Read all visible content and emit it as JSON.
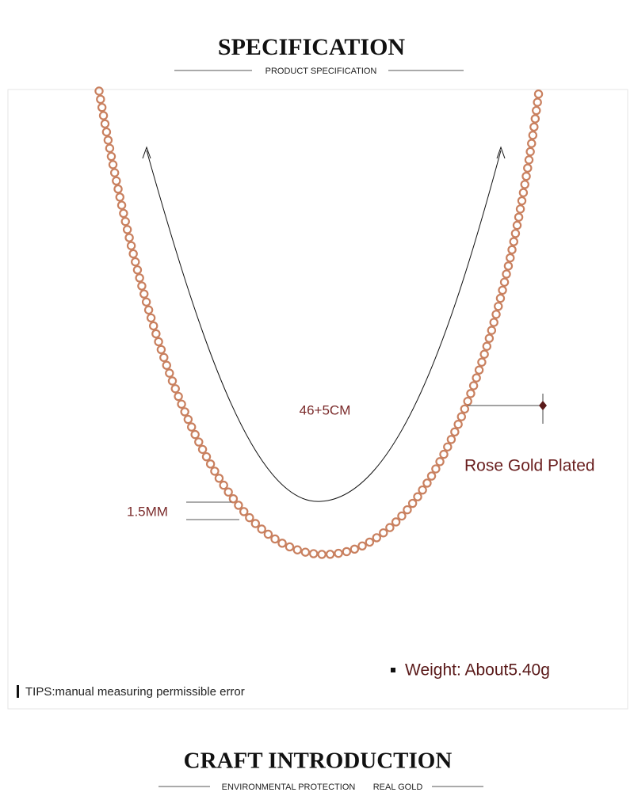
{
  "header": {
    "title": "SPECIFICATION",
    "subtitle": "PRODUCT SPECIFICATION"
  },
  "product": {
    "length": "46+5CM",
    "width": "1.5MM",
    "material": "Rose Gold Plated",
    "weight": "Weight: About5.40g",
    "tips": "TIPS:manual measuring permissible error"
  },
  "footer": {
    "title": "CRAFT INTRODUCTION",
    "subtitle": [
      "ENVIRONMENTAL PROTECTION",
      "REAL GOLD"
    ]
  }
}
